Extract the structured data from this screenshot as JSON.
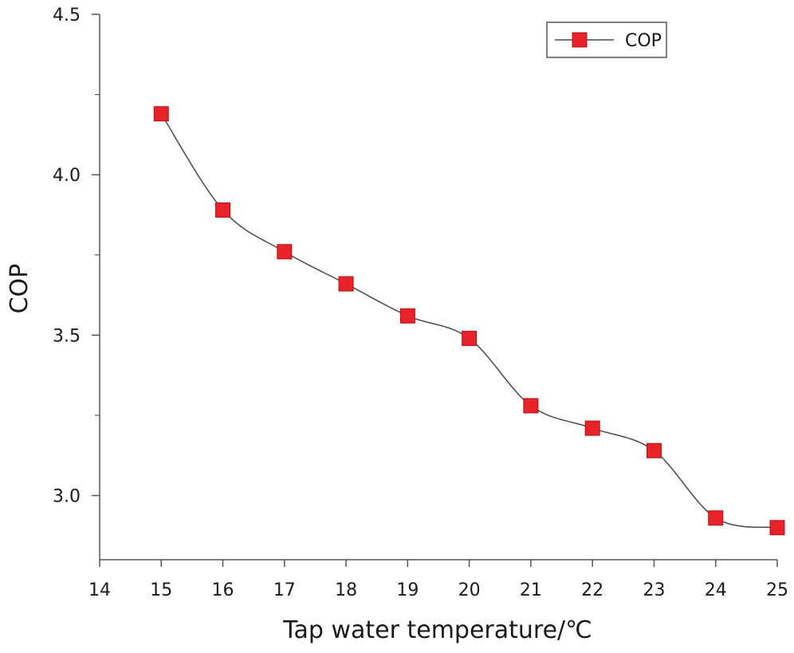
{
  "chart_data": {
    "type": "line",
    "title": "",
    "xlabel": "Tap water temperature/℃",
    "ylabel": "COP",
    "xlim": [
      14,
      25
    ],
    "ylim": [
      2.8,
      4.5
    ],
    "x_ticks": [
      14,
      15,
      16,
      17,
      18,
      19,
      20,
      21,
      22,
      23,
      24,
      25
    ],
    "x_tick_labels": [
      "14",
      "15",
      "16",
      "17",
      "18",
      "19",
      "20",
      "21",
      "22",
      "23",
      "24",
      "25"
    ],
    "y_major_ticks": [
      3.0,
      3.5,
      4.0,
      4.5
    ],
    "y_tick_labels": [
      "3.0",
      "3.5",
      "4.0",
      "4.5"
    ],
    "y_minor_ticks": [
      3.25,
      3.75,
      4.25
    ],
    "grid": false,
    "legend_position": "top-right",
    "series": [
      {
        "name": "COP",
        "color": "#e8232a",
        "line_color": "#4a4a4a",
        "marker": "square",
        "x": [
          15,
          16,
          17,
          18,
          19,
          20,
          21,
          22,
          23,
          24,
          25
        ],
        "values": [
          4.19,
          3.89,
          3.76,
          3.66,
          3.56,
          3.49,
          3.28,
          3.21,
          3.14,
          2.93,
          2.9
        ]
      }
    ]
  }
}
